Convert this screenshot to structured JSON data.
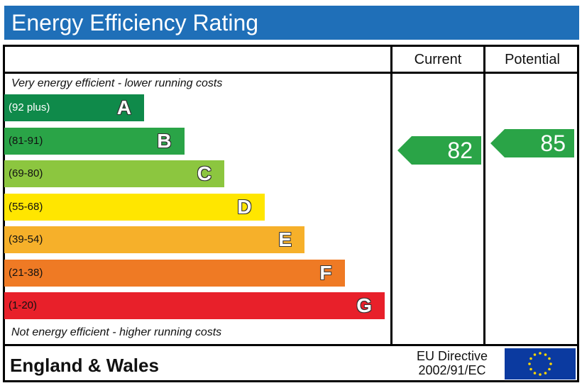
{
  "title": "Energy Efficiency Rating",
  "columns": {
    "current": "Current",
    "potential": "Potential"
  },
  "captions": {
    "top": "Very energy efficient - lower running costs",
    "bottom": "Not energy efficient - higher running costs"
  },
  "footer": {
    "region": "England & Wales",
    "directive_line1": "EU Directive",
    "directive_line2": "2002/91/EC"
  },
  "colors": {
    "title_bar": "#1f6fb8",
    "flag": "#0b3aa0",
    "flag_star": "#ffd700"
  },
  "chart_data": {
    "type": "bar",
    "categories": [
      "A",
      "B",
      "C",
      "D",
      "E",
      "F",
      "G"
    ],
    "ranges": [
      "(92 plus)",
      "(81-91)",
      "(69-80)",
      "(55-68)",
      "(39-54)",
      "(21-38)",
      "(1-20)"
    ],
    "colors": [
      "#0f8a4a",
      "#2aa447",
      "#8cc63f",
      "#ffe600",
      "#f6b02a",
      "#ef7a24",
      "#e8202a"
    ],
    "ratings": [
      {
        "key": "current",
        "value": 82,
        "band": "B",
        "color": "#2aa447"
      },
      {
        "key": "potential",
        "value": 85,
        "band": "B",
        "color": "#2aa447"
      }
    ]
  }
}
